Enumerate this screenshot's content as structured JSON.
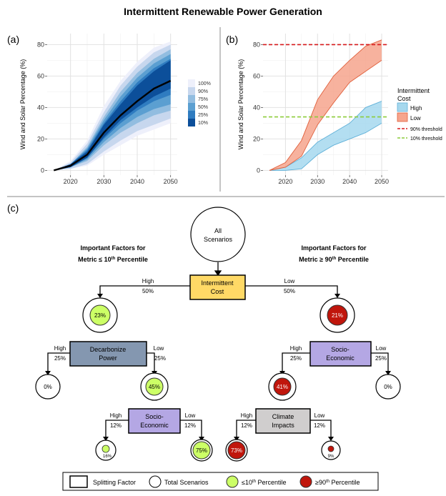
{
  "title": "Intermittent Renewable Power Generation",
  "panel_a": {
    "label": "(a)",
    "ylabel": "Wind and Solar Percentage (%)",
    "legend": [
      "100%",
      "90%",
      "75%",
      "50%",
      "25%",
      "10%"
    ]
  },
  "panel_b": {
    "label": "(b)",
    "ylabel": "Wind and Solar Percentage (%)",
    "legend_title_1": "Intermittent",
    "legend_title_2": "Cost",
    "legend_high": "High",
    "legend_low": "Low",
    "legend_90": "90% threshold",
    "legend_10": "10% threshold"
  },
  "panel_c": {
    "label": "(c)",
    "root_line1": "All",
    "root_line2": "Scenarios",
    "left_heading_1": "Important Factors for",
    "left_heading_2a": "Metric ≤ 10",
    "left_heading_sup": "th",
    "left_heading_2b": " Percentile",
    "right_heading_1": "Important Factors for",
    "right_heading_2a": "Metric ≥ 90",
    "right_heading_sup": "th",
    "right_heading_2b": " Percentile",
    "box_intermittent_1": "Intermittent",
    "box_intermittent_2": "Cost",
    "box_decarb_1": "Decarbonize",
    "box_decarb_2": "Power",
    "box_socio_left_1": "Socio-",
    "box_socio_left_2": "Economic",
    "box_socio_right_1": "Socio-",
    "box_socio_right_2": "Economic",
    "box_climate_1": "Climate",
    "box_climate_2": "Impacts",
    "branch_high": "High",
    "branch_low": "Low",
    "pct_50": "50%",
    "pct_25": "25%",
    "pct_12": "12%",
    "node_23": "23%",
    "node_21": "21%",
    "node_0": "0%",
    "node_45": "45%",
    "node_41": "41%",
    "node_16": "16%",
    "node_75": "75%",
    "node_73": "73%",
    "node_9": "9%",
    "legend_split": "Splitting Factor",
    "legend_total": "Total Scenarios",
    "legend_le10": "≤10",
    "legend_ge90": "≥90",
    "legend_th": "th",
    "legend_percentile": " Percentile"
  },
  "chart_data": [
    {
      "type": "area",
      "panel": "(a)",
      "title": "",
      "xlabel": "",
      "ylabel": "Wind and Solar Percentage (%)",
      "xlim": [
        2013,
        2052
      ],
      "ylim": [
        -3,
        87
      ],
      "xticks": [
        2020,
        2030,
        2040,
        2050
      ],
      "yticks": [
        0,
        20,
        40,
        60,
        80
      ],
      "grid": true,
      "legend_position": "right",
      "x": [
        2015,
        2020,
        2025,
        2030,
        2035,
        2040,
        2045,
        2050
      ],
      "median": [
        0,
        3,
        10,
        24,
        35,
        44,
        52,
        57
      ],
      "bands": [
        {
          "name": "100%",
          "color": "#eef0fb",
          "lower": [
            0,
            1,
            3,
            10,
            16,
            22,
            26,
            30
          ],
          "upper": [
            0,
            6,
            19,
            41,
            57,
            69,
            78,
            82
          ]
        },
        {
          "name": "90%",
          "color": "#c7d7ee",
          "lower": [
            0,
            1,
            4,
            12,
            19,
            25,
            29,
            33
          ],
          "upper": [
            0,
            5,
            17,
            37,
            54,
            66,
            75,
            80
          ]
        },
        {
          "name": "75%",
          "color": "#92bde0",
          "lower": [
            0,
            2,
            6,
            16,
            24,
            30,
            35,
            38
          ],
          "upper": [
            0,
            4,
            15,
            34,
            50,
            62,
            71,
            77
          ]
        },
        {
          "name": "50%",
          "color": "#5b9fd1",
          "lower": [
            0,
            2,
            7,
            18,
            27,
            34,
            39,
            42
          ],
          "upper": [
            0,
            4,
            14,
            32,
            47,
            59,
            68,
            74
          ]
        },
        {
          "name": "25%",
          "color": "#2f7cc0",
          "lower": [
            0,
            2,
            8,
            20,
            30,
            38,
            44,
            48
          ],
          "upper": [
            0,
            4,
            13,
            30,
            44,
            56,
            65,
            71
          ]
        },
        {
          "name": "10%",
          "color": "#0c4f9a",
          "lower": [
            0,
            2,
            8,
            21,
            32,
            40,
            47,
            52
          ],
          "upper": [
            0,
            4,
            12,
            29,
            42,
            54,
            63,
            70
          ]
        }
      ]
    },
    {
      "type": "area",
      "panel": "(b)",
      "title": "",
      "xlabel": "",
      "ylabel": "Wind and Solar Percentage (%)",
      "xlim": [
        2013,
        2052
      ],
      "ylim": [
        -3,
        87
      ],
      "xticks": [
        2020,
        2030,
        2040,
        2050
      ],
      "yticks": [
        0,
        20,
        40,
        60,
        80
      ],
      "grid": true,
      "legend_position": "right",
      "x": [
        2015,
        2020,
        2025,
        2030,
        2035,
        2040,
        2045,
        2050
      ],
      "series": [
        {
          "name": "High",
          "color": "#a6d8ee",
          "lower": [
            0,
            0,
            1,
            10,
            16,
            20,
            24,
            30
          ],
          "upper": [
            0,
            2,
            8,
            18,
            24,
            30,
            40,
            44
          ]
        },
        {
          "name": "Low",
          "color": "#f6a58d",
          "lower": [
            0,
            2,
            9,
            29,
            43,
            56,
            63,
            70
          ],
          "upper": [
            0,
            5,
            19,
            45,
            60,
            70,
            79,
            83
          ]
        }
      ],
      "thresholds": [
        {
          "name": "90% threshold",
          "value": 80,
          "color": "#d7191c"
        },
        {
          "name": "10% threshold",
          "value": 34,
          "color": "#8ccc3a"
        }
      ]
    }
  ]
}
